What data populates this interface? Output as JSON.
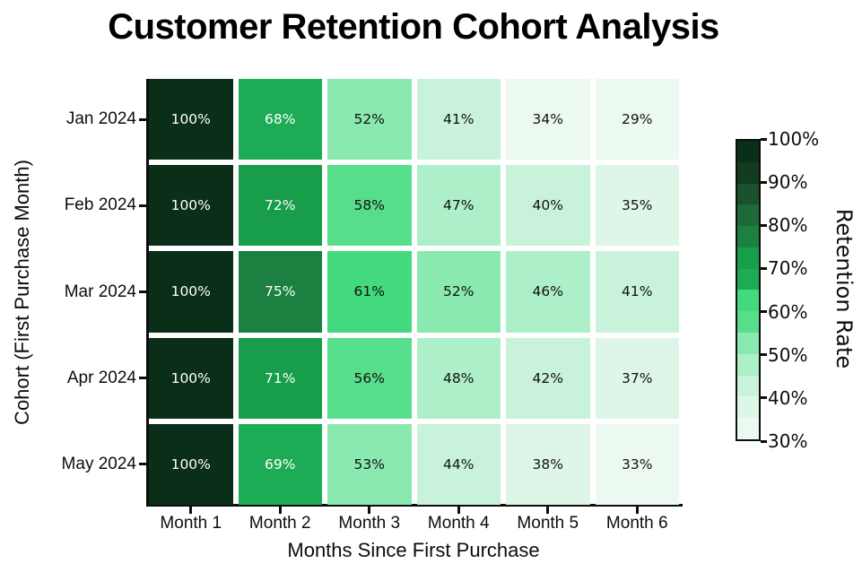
{
  "chart_data": {
    "type": "heatmap",
    "title": "Customer Retention Cohort Analysis",
    "xlabel": "Months Since First Purchase",
    "ylabel": "Cohort (First Purchase Month)",
    "x_categories": [
      "Month 1",
      "Month 2",
      "Month 3",
      "Month 4",
      "Month 5",
      "Month 6"
    ],
    "y_categories": [
      "Jan 2024",
      "Feb 2024",
      "Mar 2024",
      "Apr 2024",
      "May 2024"
    ],
    "values": [
      [
        100,
        68,
        52,
        41,
        34,
        29
      ],
      [
        100,
        72,
        58,
        47,
        40,
        35
      ],
      [
        100,
        75,
        61,
        52,
        46,
        41
      ],
      [
        100,
        71,
        56,
        48,
        42,
        37
      ],
      [
        100,
        69,
        53,
        44,
        38,
        33
      ]
    ],
    "cell_label_format": "{v}%",
    "grid": false,
    "colorbar": {
      "label": "Retention Rate",
      "vmin": 30,
      "vmax": 100,
      "bin_step": 5,
      "ticks": [
        {
          "value": 100,
          "label": "100%"
        },
        {
          "value": 90,
          "label": "90%"
        },
        {
          "value": 80,
          "label": "80%"
        },
        {
          "value": 70,
          "label": "70%"
        },
        {
          "value": 60,
          "label": "60%"
        },
        {
          "value": 50,
          "label": "50%"
        },
        {
          "value": 40,
          "label": "40%"
        },
        {
          "value": 30,
          "label": "30%"
        }
      ]
    },
    "colors": {
      "bin_colors": [
        "#ecf9f1",
        "#def6e8",
        "#c9f2da",
        "#adefc9",
        "#8ae9ae",
        "#57de8b",
        "#43d97e",
        "#1dab55",
        "#189d4b",
        "#1c8040",
        "#1d6a36",
        "#1b512c",
        "#123b20",
        "#0a2e18"
      ],
      "text_dark": "#111111",
      "text_light": "#ffffff",
      "light_text_threshold": 65,
      "axis": "#0d0d0d",
      "background": "#ffffff"
    }
  }
}
